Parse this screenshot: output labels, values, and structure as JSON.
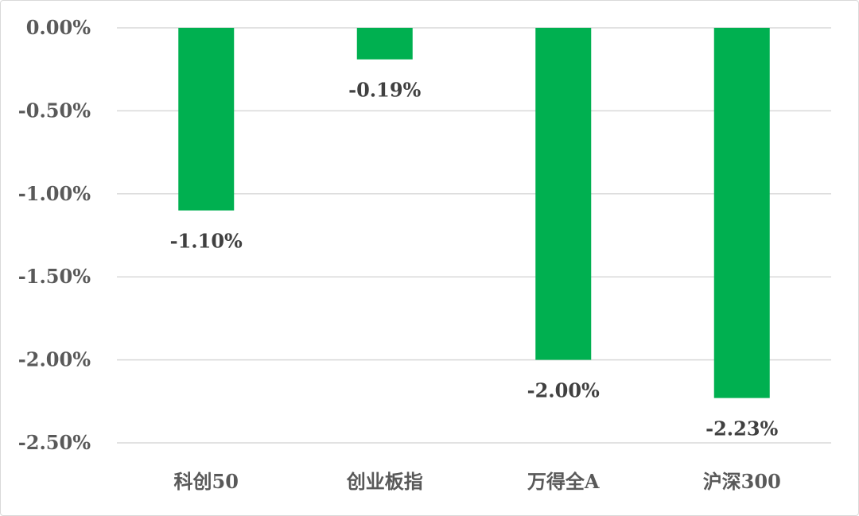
{
  "chart_data": {
    "type": "bar",
    "categories": [
      "科创50",
      "创业板指",
      "万得全A",
      "沪深300"
    ],
    "values": [
      -1.1,
      -0.19,
      -2.0,
      -2.23
    ],
    "value_labels": [
      "-1.10%",
      "-0.19%",
      "-2.00%",
      "-2.23%"
    ],
    "y_ticks": [
      0,
      -0.5,
      -1.0,
      -1.5,
      -2.0,
      -2.5
    ],
    "y_tick_labels": [
      "0.00%",
      "-0.50%",
      "-1.00%",
      "-1.50%",
      "-2.00%",
      "-2.50%"
    ],
    "ylim": [
      -2.5,
      0
    ],
    "grid": true,
    "legend": "none",
    "title": "",
    "xlabel": "",
    "ylabel": "",
    "colors": {
      "bar": "#00b050",
      "grid": "#d9d9d9",
      "tick_text": "#595959",
      "label_text": "#404040"
    }
  }
}
